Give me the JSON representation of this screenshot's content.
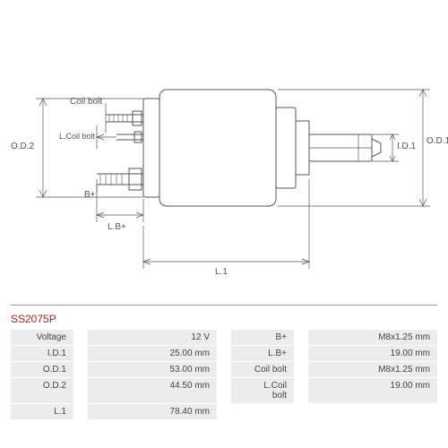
{
  "part_number": "SS2075P",
  "drawing": {
    "labels": {
      "coil_bolt": "Coil bolt",
      "l_coil_bolt": "L.Coil bolt",
      "b_plus": "B+",
      "od2": "O.D.2",
      "lb_plus": "L.B+",
      "l1": "L.1",
      "id1": "I.D.1",
      "od1": "O.D.1"
    },
    "colors": {
      "stroke": "#555555",
      "text": "#555555",
      "accent": "#c02020",
      "background": "#ffffff",
      "table_bg": "#ececec"
    }
  },
  "specs_left": [
    {
      "label": "Voltage",
      "value": "12 V"
    },
    {
      "label": "I.D.1",
      "value": "25.00 mm"
    },
    {
      "label": "O.D.1",
      "value": "53.00 mm"
    },
    {
      "label": "O.D.2",
      "value": "44.50 mm"
    },
    {
      "label": "L.1",
      "value": "78.40 mm"
    }
  ],
  "specs_right": [
    {
      "label": "B+",
      "value": "M8x1.25 mm"
    },
    {
      "label": "L.B+",
      "value": "19.00 mm"
    },
    {
      "label": "Coil bolt",
      "value": "M8x1.25 mm"
    },
    {
      "label": "L.Coil bolt",
      "value": "19.00 mm"
    }
  ]
}
